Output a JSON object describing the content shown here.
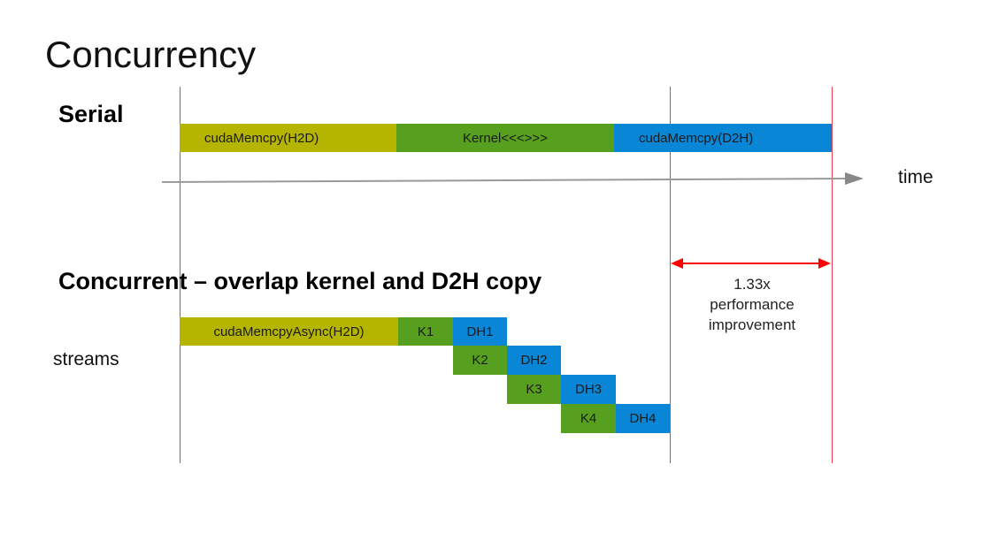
{
  "title": "Concurrency",
  "serial": {
    "heading": "Serial",
    "blocks": [
      {
        "label": "cudaMemcpy(H2D)",
        "color": "#b5b500"
      },
      {
        "label": "Kernel<<<>>>",
        "color": "#57a01f"
      },
      {
        "label": "cudaMemcpy(D2H)",
        "color": "#0a86d6"
      }
    ]
  },
  "time_label": "time",
  "concurrent": {
    "heading": "Concurrent – overlap kernel and D2H copy",
    "streams_label": "streams",
    "blocks": {
      "h2d": "cudaMemcpyAsync(H2D)",
      "k1": "K1",
      "dh1": "DH1",
      "k2": "K2",
      "dh2": "DH2",
      "k3": "K3",
      "dh3": "DH3",
      "k4": "K4",
      "dh4": "DH4"
    }
  },
  "improvement": {
    "line1": "1.33x",
    "line2": "performance",
    "line3": "improvement"
  }
}
